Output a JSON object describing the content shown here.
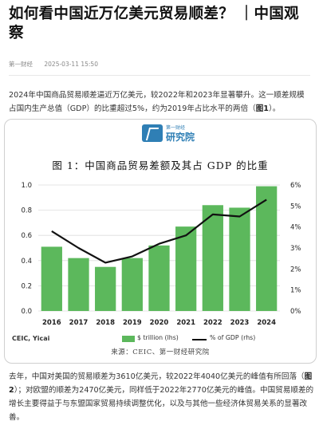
{
  "article": {
    "title": "如何看中国近万亿美元贸易顺差？ ｜中国观察",
    "source_name": "第一财经",
    "published": "2025-03-11 15:50",
    "para1_text": "2024年中国商品贸易顺差逼近万亿美元，较2022年和2023年显著攀升。这一顺差规模占国内生产总值（GDP）的比重超过5%，约为2019年占比水平的两倍（",
    "para1_ref": "图1",
    "para1_end": "）。",
    "para2_text": "去年，中国对美国的贸易顺差为3610亿美元，较2022年4040亿美元的峰值有所回落（",
    "para2_ref": "图2",
    "para2_end": "）；对欧盟的顺差为2470亿美元，同样低于2022年2770亿美元的峰值。中国贸易顺差的增长主要得益于与东盟国家贸易持续调整优化，以及与其他一些经济体贸易关系的显著改善。"
  },
  "figure": {
    "logo_small": "第一财经",
    "logo_big": "研究院",
    "title": "图 1：中国商品贸易差额及其占 GDP 的比重",
    "source_left": "CEIC, Yicai",
    "source": "来源：CEIC、第一财经研究院"
  },
  "colors": {
    "bar": "#5cb85c",
    "line": "#111111",
    "grid": "#dddddd"
  },
  "chart_data": {
    "type": "bar",
    "categories": [
      "2016",
      "2017",
      "2018",
      "2019",
      "2020",
      "2021",
      "2022",
      "2023",
      "2024"
    ],
    "series": [
      {
        "name": "$ trillion (lhs)",
        "type": "bar",
        "axis": "left",
        "values": [
          0.51,
          0.42,
          0.35,
          0.42,
          0.52,
          0.67,
          0.84,
          0.82,
          0.99
        ]
      },
      {
        "name": "% of GDP (rhs)",
        "type": "line",
        "axis": "right",
        "values": [
          3.8,
          3.0,
          2.3,
          2.6,
          3.2,
          3.6,
          4.6,
          4.5,
          5.3
        ]
      }
    ],
    "ylim_left": [
      0,
      1.0
    ],
    "yticks_left": [
      "0.0",
      "0.2",
      "0.4",
      "0.6",
      "0.8",
      "1.0"
    ],
    "ylim_right": [
      0,
      6
    ],
    "yticks_right": [
      "0%",
      "1%",
      "2%",
      "3%",
      "4%",
      "5%",
      "6%"
    ],
    "grid": true,
    "legend": "bottom"
  }
}
